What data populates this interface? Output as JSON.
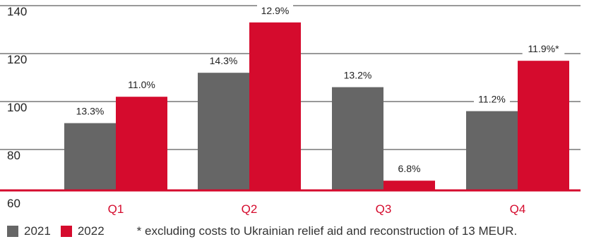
{
  "chart_data": {
    "type": "bar",
    "categories": [
      "Q1",
      "Q2",
      "Q3",
      "Q4"
    ],
    "series": [
      {
        "name": "2021",
        "values": [
          91,
          112,
          106,
          96
        ],
        "labels": [
          "13.3%",
          "14.3%",
          "13.2%",
          "11.2%"
        ],
        "color": "#666666"
      },
      {
        "name": "2022",
        "values": [
          102,
          133,
          67,
          117
        ],
        "labels": [
          "11.0%",
          "12.9%",
          "6.8%",
          "11.9%*"
        ],
        "color": "#d50b2d"
      }
    ],
    "yticks": [
      "140",
      "120",
      "100",
      "80",
      "60"
    ],
    "ylim": [
      60,
      145
    ],
    "grid": true,
    "legend_position": "bottom",
    "note": "* excluding costs to Ukrainian relief aid and reconstruction of 13 MEUR."
  }
}
